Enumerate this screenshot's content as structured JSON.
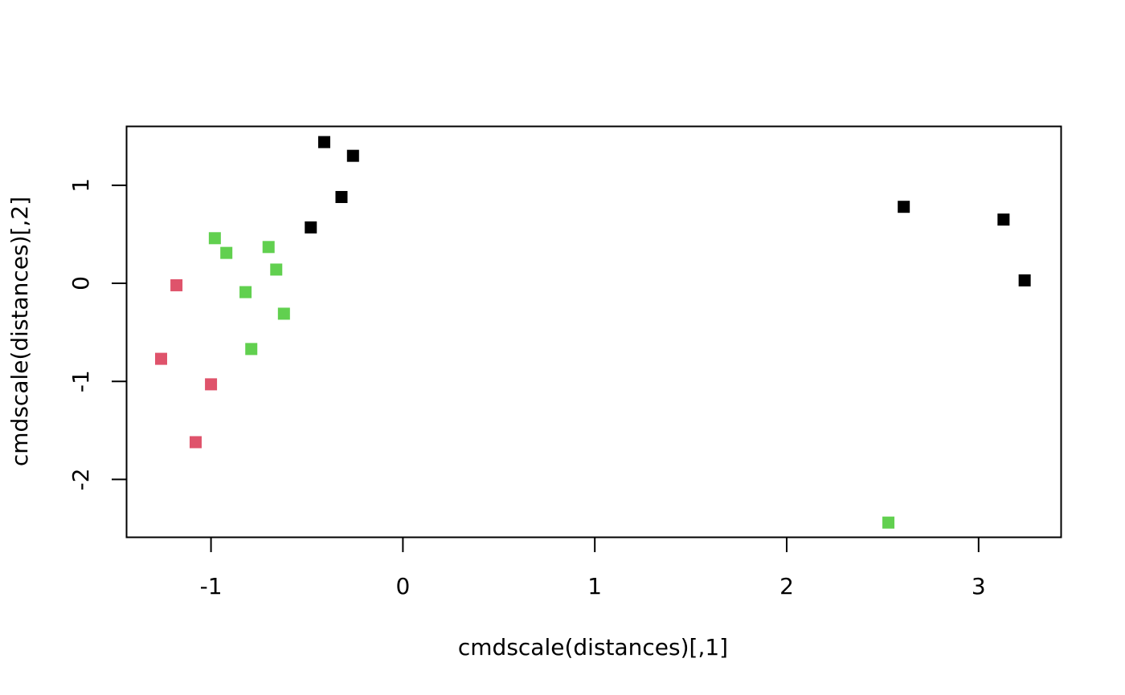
{
  "chart_data": {
    "type": "scatter",
    "title": "",
    "xlabel": "cmdscale(distances)[,1]",
    "ylabel": "cmdscale(distances)[,2]",
    "xlim": [
      -1.44,
      3.43
    ],
    "ylim": [
      -2.59,
      1.6
    ],
    "x_ticks": [
      -1,
      0,
      1,
      2,
      3
    ],
    "x_tick_labels": [
      "-1",
      "0",
      "1",
      "2",
      "3"
    ],
    "y_ticks": [
      -2,
      -1,
      0,
      1
    ],
    "y_tick_labels": [
      "-2",
      "-1",
      "0",
      "1"
    ],
    "grid": false,
    "legend": "none",
    "marker": "square",
    "colors": {
      "black": "#000000",
      "red": "#DF536B",
      "green": "#61D04F"
    },
    "series": [
      {
        "color": "#000000",
        "points": [
          {
            "x": -0.41,
            "y": 1.44
          },
          {
            "x": -0.26,
            "y": 1.3
          },
          {
            "x": -0.32,
            "y": 0.88
          },
          {
            "x": -0.48,
            "y": 0.57
          },
          {
            "x": 2.61,
            "y": 0.78
          },
          {
            "x": 3.13,
            "y": 0.65
          },
          {
            "x": 3.24,
            "y": 0.03
          }
        ]
      },
      {
        "color": "#DF536B",
        "points": [
          {
            "x": -1.18,
            "y": -0.02
          },
          {
            "x": -1.26,
            "y": -0.77
          },
          {
            "x": -1.0,
            "y": -1.03
          },
          {
            "x": -1.08,
            "y": -1.62
          }
        ]
      },
      {
        "color": "#61D04F",
        "points": [
          {
            "x": -0.98,
            "y": 0.46
          },
          {
            "x": -0.92,
            "y": 0.31
          },
          {
            "x": -0.7,
            "y": 0.37
          },
          {
            "x": -0.66,
            "y": 0.14
          },
          {
            "x": -0.82,
            "y": -0.09
          },
          {
            "x": -0.62,
            "y": -0.31
          },
          {
            "x": -0.79,
            "y": -0.67
          },
          {
            "x": 2.53,
            "y": -2.44
          }
        ]
      }
    ]
  }
}
